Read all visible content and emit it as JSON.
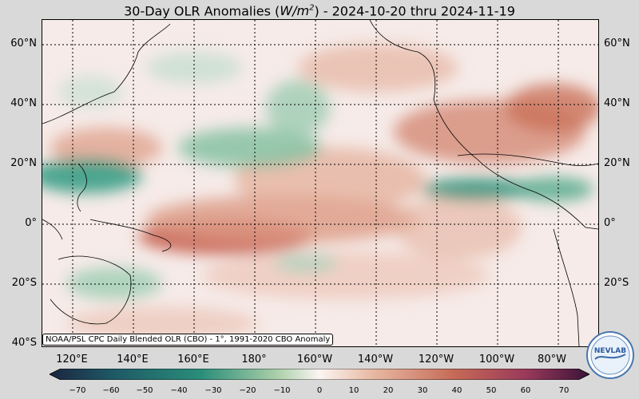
{
  "title": {
    "prefix": "30-Day OLR Anomalies (",
    "unit_base": "W/m",
    "unit_exp": "2",
    "suffix": ") - 2024-10-20 thru 2024-11-19"
  },
  "credit": "NOAA/PSL CPC Daily Blended OLR (CBO) - 1°, 1991-2020 CBO Anomaly",
  "latitude_labels": [
    "60°N",
    "40°N",
    "20°N",
    "0°",
    "20°S",
    "40°S"
  ],
  "longitude_labels": [
    "120°E",
    "140°E",
    "160°E",
    "180°",
    "160°W",
    "140°W",
    "120°W",
    "100°W",
    "80°W"
  ],
  "colorbar": {
    "ticks": [
      "−70",
      "−60",
      "−50",
      "−40",
      "−30",
      "−20",
      "−10",
      "0",
      "10",
      "20",
      "30",
      "40",
      "50",
      "60",
      "70"
    ],
    "range": [
      -70,
      70
    ],
    "negative_color": "#1f8a78",
    "positive_color": "#b5483e"
  },
  "logo_text": "NEVLAB"
}
